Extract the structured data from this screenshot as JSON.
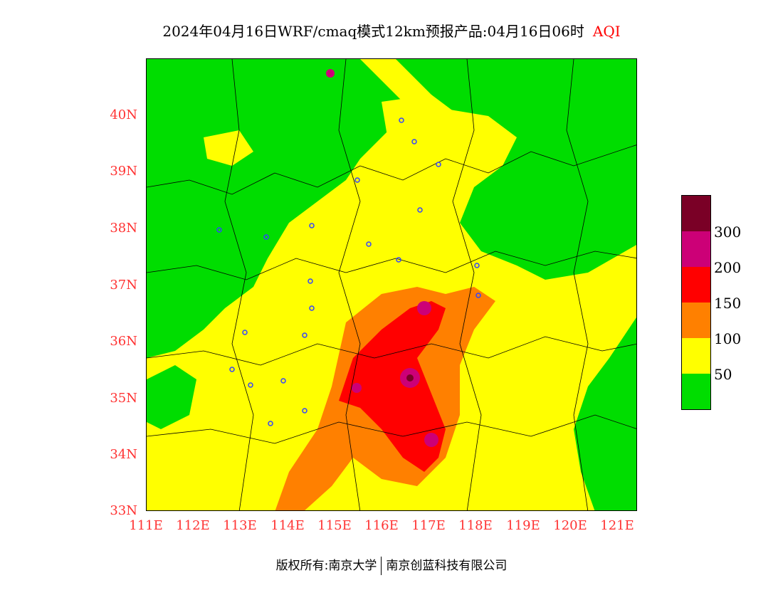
{
  "title": {
    "main": "2024年04月16日WRF/cmaq模式12km预报产品:04月16日06时",
    "variable": "AQI"
  },
  "y_ticks": [
    "40N",
    "39N",
    "38N",
    "37N",
    "36N",
    "35N",
    "34N",
    "33N"
  ],
  "x_ticks": [
    "111E",
    "112E",
    "113E",
    "114E",
    "115E",
    "116E",
    "117E",
    "118E",
    "119E",
    "120E",
    "121E"
  ],
  "legend": {
    "colors": [
      "#7a0026",
      "#cc0077",
      "#ff0000",
      "#ff8000",
      "#ffff00",
      "#00dd00"
    ],
    "labels": [
      "300",
      "200",
      "150",
      "100",
      "50"
    ]
  },
  "footer": {
    "left": "版权所有:南京大学",
    "right": "南京创蓝科技有限公司"
  },
  "colors": {
    "good": "#00dd00",
    "moderate": "#ffff00",
    "sensitive": "#ff8000",
    "unhealthy": "#ff0000",
    "very_unhealthy": "#cc0077",
    "hazardous": "#7a0026",
    "tick_text": "#ff3333"
  }
}
